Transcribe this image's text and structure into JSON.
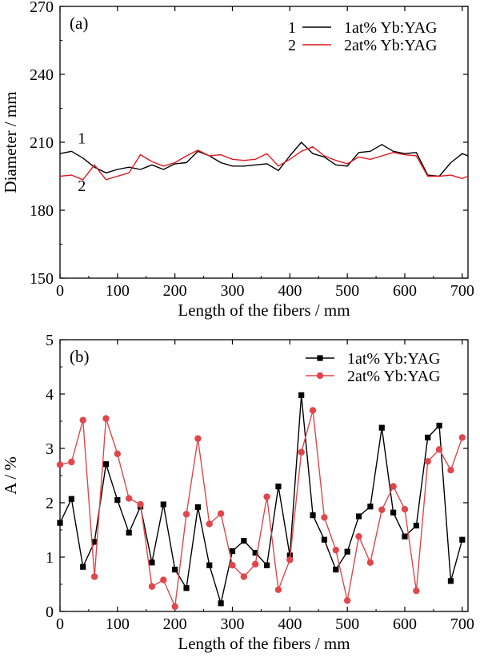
{
  "chart_data": [
    {
      "type": "line",
      "panel_label": "(a)",
      "xlabel": "Length of the fibers / mm",
      "ylabel": "Diameter / mm",
      "xlim": [
        0,
        710
      ],
      "ylim": [
        150,
        270
      ],
      "xticks": [
        0,
        100,
        200,
        300,
        400,
        500,
        600,
        700
      ],
      "yticks": [
        150,
        180,
        210,
        240,
        270
      ],
      "grid": false,
      "legend_position": "top-right",
      "curve_labels": [
        "1",
        "2"
      ],
      "series": [
        {
          "name": "1at% Yb:YAG",
          "legend_number": "1",
          "color": "#000000",
          "x": [
            0,
            20,
            40,
            60,
            80,
            100,
            120,
            140,
            160,
            180,
            200,
            220,
            240,
            260,
            280,
            300,
            320,
            340,
            360,
            380,
            400,
            420,
            440,
            460,
            480,
            500,
            520,
            540,
            560,
            580,
            600,
            620,
            640,
            660,
            680,
            700,
            710
          ],
          "y": [
            205,
            206,
            203,
            199,
            196.5,
            198,
            199,
            198,
            200,
            198,
            200.5,
            201,
            206,
            204,
            201,
            199.5,
            199.5,
            200,
            200.5,
            197.5,
            204,
            210,
            205,
            203.5,
            200,
            199.5,
            205.5,
            206,
            209,
            206,
            205,
            205.5,
            195.5,
            195,
            201,
            205,
            204
          ]
        },
        {
          "name": "2at% Yb:YAG",
          "legend_number": "2",
          "color": "#e0191f",
          "x": [
            0,
            20,
            40,
            60,
            80,
            100,
            120,
            140,
            160,
            180,
            200,
            220,
            240,
            260,
            280,
            300,
            320,
            340,
            360,
            380,
            400,
            420,
            440,
            460,
            480,
            500,
            520,
            540,
            560,
            580,
            600,
            620,
            640,
            660,
            680,
            700,
            710
          ],
          "y": [
            195,
            195.5,
            193.5,
            200,
            193.5,
            195,
            196.5,
            204.5,
            201.5,
            199.5,
            201,
            204,
            206.5,
            204,
            204.5,
            202.5,
            202,
            202.5,
            205,
            199.5,
            202.5,
            206,
            208,
            204,
            202,
            200.5,
            203.5,
            202.5,
            204,
            205.5,
            204.5,
            204,
            195,
            195,
            195.5,
            194,
            195
          ]
        }
      ]
    },
    {
      "type": "line",
      "panel_label": "(b)",
      "xlabel": "Length of the fibers / mm",
      "ylabel": "A / %",
      "xlim": [
        0,
        710
      ],
      "ylim": [
        0,
        5
      ],
      "xticks": [
        0,
        100,
        200,
        300,
        400,
        500,
        600,
        700
      ],
      "yticks": [
        0,
        1,
        2,
        3,
        4,
        5
      ],
      "grid": false,
      "legend_position": "top-right",
      "series": [
        {
          "name": "1at% Yb:YAG",
          "color": "#000000",
          "marker": "square",
          "x": [
            0,
            20,
            40,
            60,
            80,
            100,
            120,
            140,
            160,
            180,
            200,
            220,
            240,
            260,
            280,
            300,
            320,
            340,
            360,
            380,
            400,
            420,
            440,
            460,
            480,
            500,
            520,
            540,
            560,
            580,
            600,
            620,
            640,
            660,
            680,
            700
          ],
          "y": [
            1.63,
            2.07,
            0.82,
            1.28,
            2.71,
            2.05,
            1.45,
            1.93,
            0.9,
            1.97,
            0.77,
            0.43,
            1.92,
            0.85,
            0.15,
            1.11,
            1.3,
            1.08,
            0.85,
            2.3,
            1.03,
            3.98,
            1.77,
            1.32,
            0.77,
            1.1,
            1.75,
            1.93,
            3.38,
            1.82,
            1.38,
            1.58,
            3.2,
            3.42,
            0.56,
            1.32
          ]
        },
        {
          "name": "2at% Yb:YAG",
          "color": "#e0474c",
          "marker": "circle",
          "x": [
            0,
            20,
            40,
            60,
            80,
            100,
            120,
            140,
            160,
            180,
            200,
            220,
            240,
            260,
            280,
            300,
            320,
            340,
            360,
            380,
            400,
            420,
            440,
            460,
            480,
            500,
            520,
            540,
            560,
            580,
            600,
            620,
            640,
            660,
            680,
            700
          ],
          "y": [
            2.7,
            2.75,
            3.52,
            0.64,
            3.55,
            2.9,
            2.08,
            1.97,
            0.46,
            0.58,
            0.09,
            1.79,
            3.18,
            1.61,
            1.8,
            0.85,
            0.64,
            0.87,
            2.11,
            0.4,
            0.95,
            2.93,
            3.7,
            1.73,
            1.13,
            0.2,
            1.38,
            0.9,
            1.87,
            2.3,
            1.88,
            0.38,
            2.76,
            2.98,
            2.6,
            3.2
          ]
        }
      ]
    }
  ]
}
